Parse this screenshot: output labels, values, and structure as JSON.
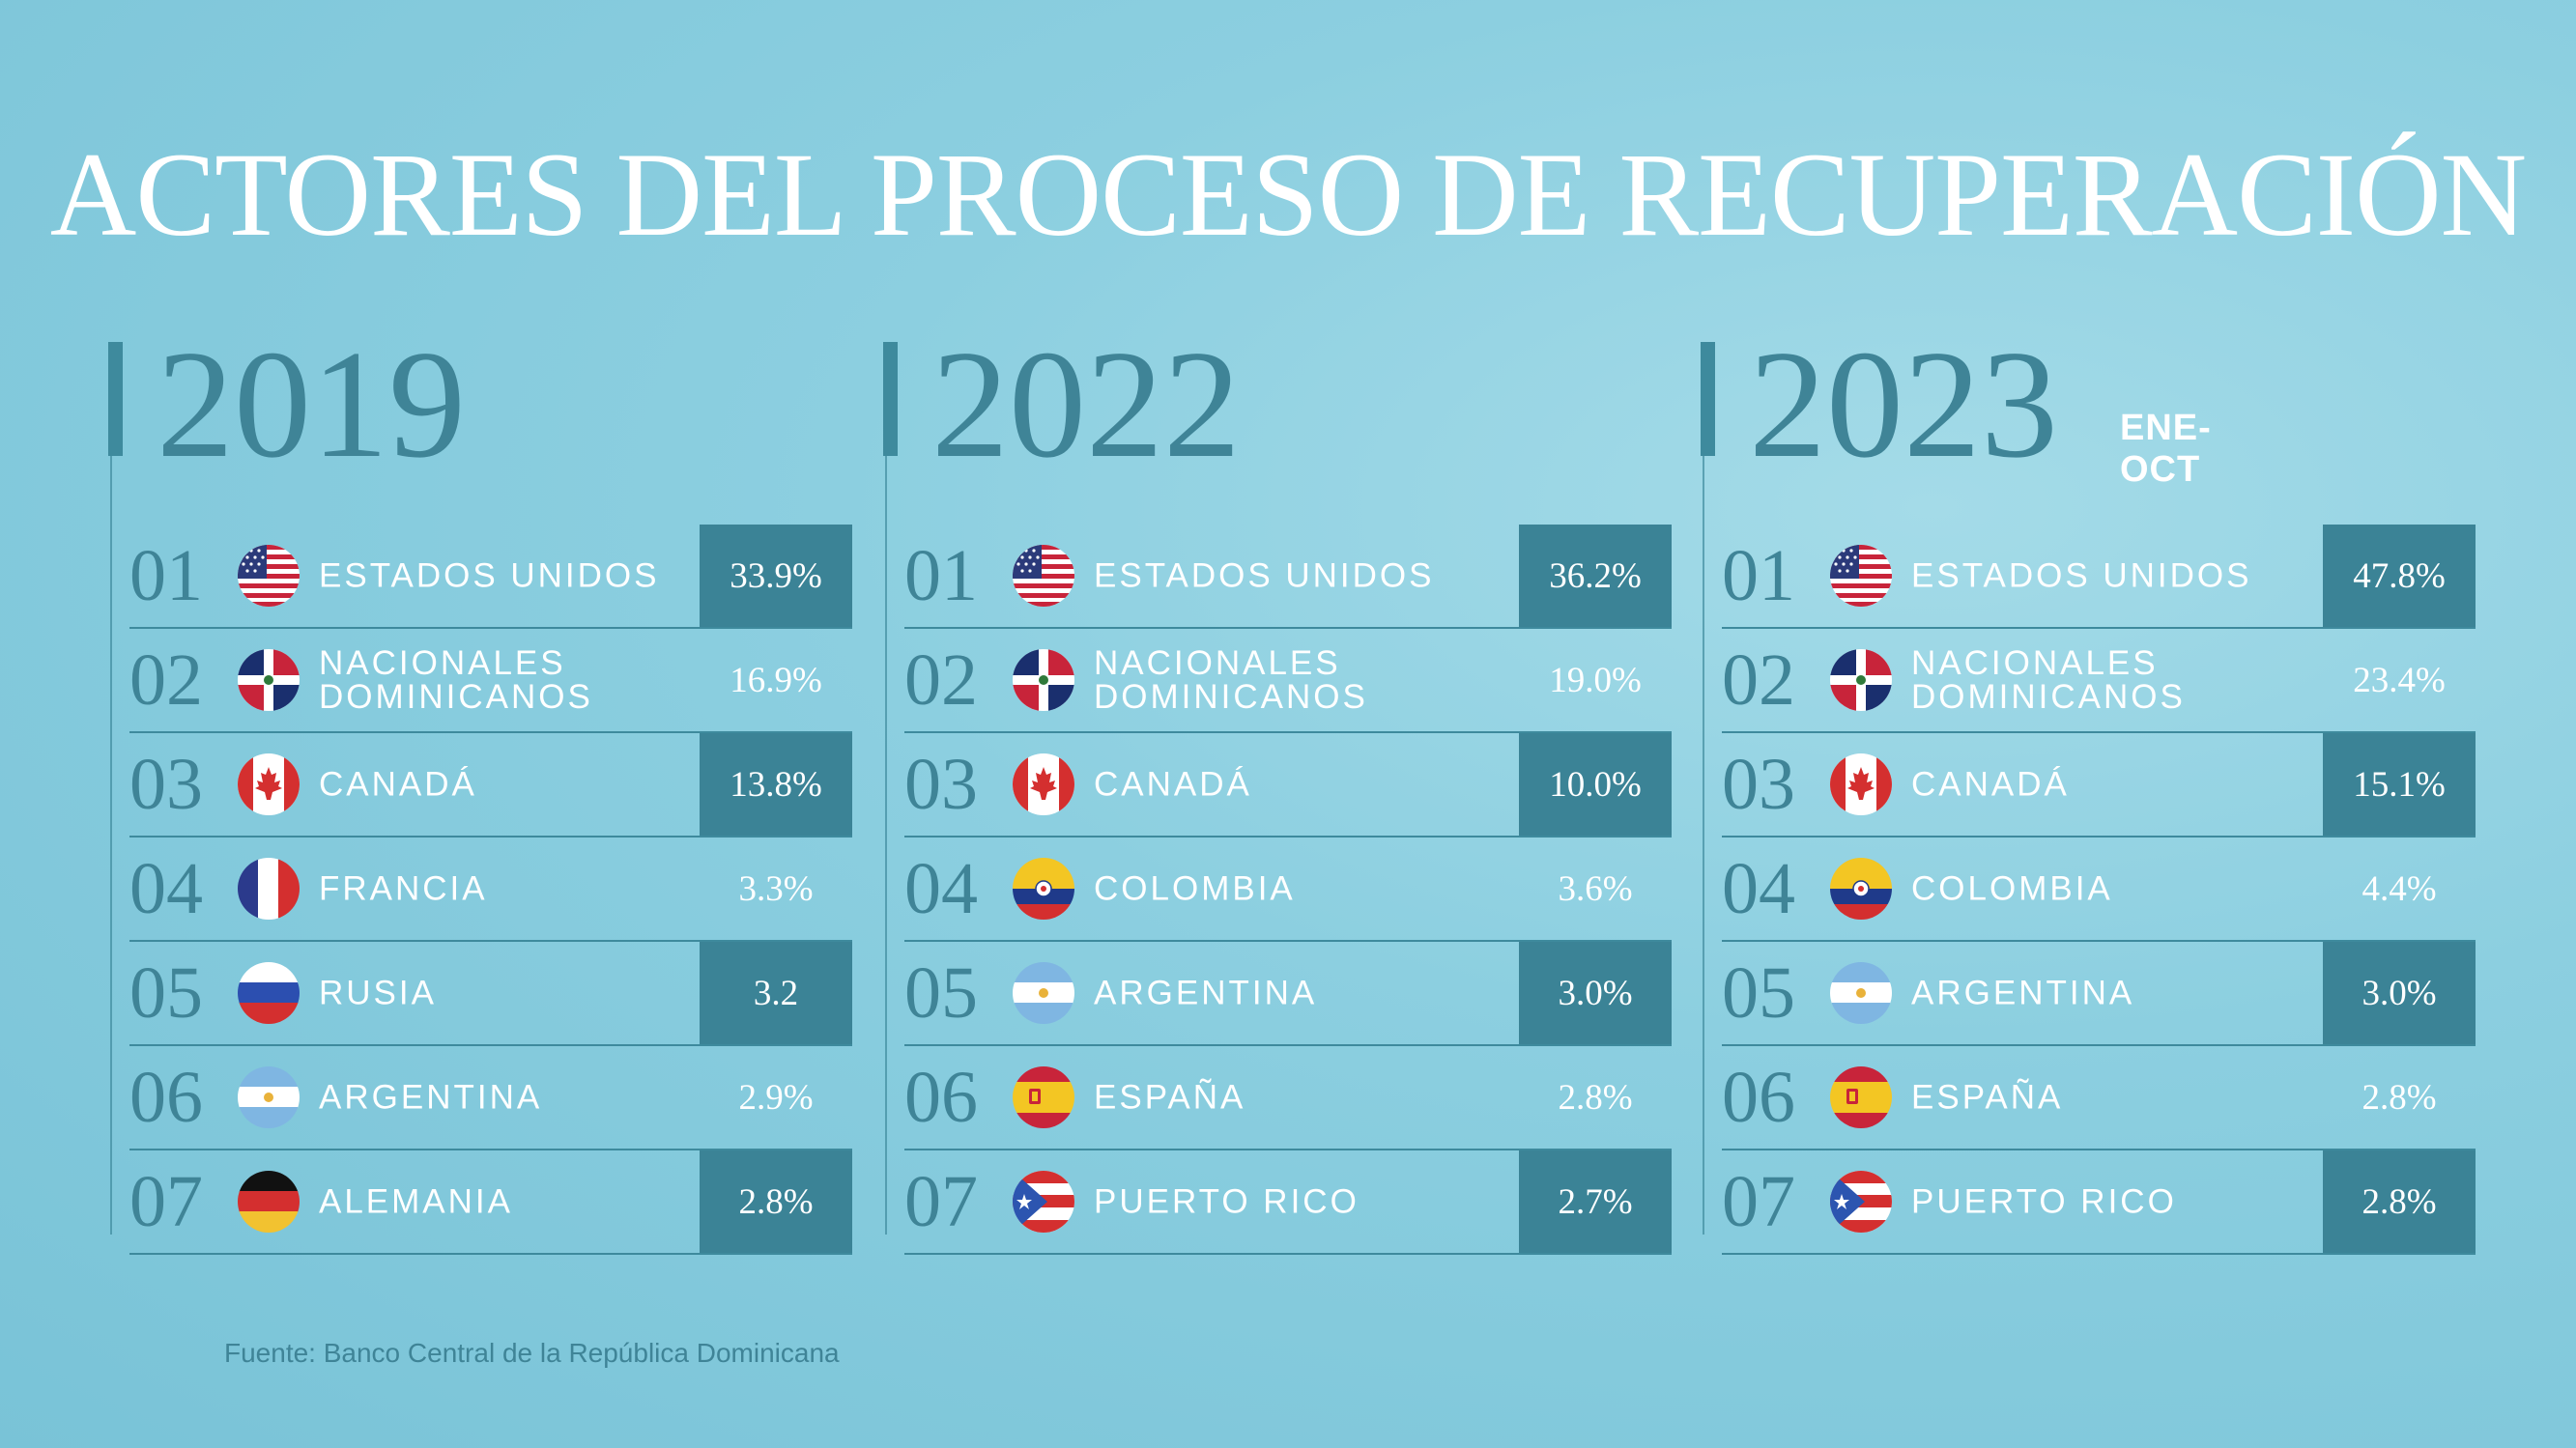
{
  "title": "ACTORES DEL PROCESO DE RECUPERACIÓN",
  "source": "Fuente: Banco Central de la República Dominicana",
  "columns": [
    {
      "year": "2019",
      "subtitle": "",
      "rows": [
        {
          "rank": "01",
          "country": "ESTADOS UNIDOS",
          "flag": "usa-flag-icon",
          "value": "33.9%"
        },
        {
          "rank": "02",
          "country": "NACIONALES DOMINICANOS",
          "flag": "dominican-republic-flag-icon",
          "value": "16.9%"
        },
        {
          "rank": "03",
          "country": "CANADÁ",
          "flag": "canada-flag-icon",
          "value": "13.8%"
        },
        {
          "rank": "04",
          "country": "FRANCIA",
          "flag": "france-flag-icon",
          "value": "3.3%"
        },
        {
          "rank": "05",
          "country": "RUSIA",
          "flag": "russia-flag-icon",
          "value": "3.2"
        },
        {
          "rank": "06",
          "country": "ARGENTINA",
          "flag": "argentina-flag-icon",
          "value": "2.9%"
        },
        {
          "rank": "07",
          "country": "ALEMANIA",
          "flag": "germany-flag-icon",
          "value": "2.8%"
        }
      ]
    },
    {
      "year": "2022",
      "subtitle": "",
      "rows": [
        {
          "rank": "01",
          "country": "ESTADOS UNIDOS",
          "flag": "usa-flag-icon",
          "value": "36.2%"
        },
        {
          "rank": "02",
          "country": "NACIONALES DOMINICANOS",
          "flag": "dominican-republic-flag-icon",
          "value": "19.0%"
        },
        {
          "rank": "03",
          "country": "CANADÁ",
          "flag": "canada-flag-icon",
          "value": "10.0%"
        },
        {
          "rank": "04",
          "country": "COLOMBIA",
          "flag": "colombia-flag-icon",
          "value": "3.6%"
        },
        {
          "rank": "05",
          "country": "ARGENTINA",
          "flag": "argentina-flag-icon",
          "value": "3.0%"
        },
        {
          "rank": "06",
          "country": "ESPAÑA",
          "flag": "spain-flag-icon",
          "value": "2.8%"
        },
        {
          "rank": "07",
          "country": "PUERTO RICO",
          "flag": "puerto-rico-flag-icon",
          "value": "2.7%"
        }
      ]
    },
    {
      "year": "2023",
      "subtitle": "ENE-OCT",
      "rows": [
        {
          "rank": "01",
          "country": "ESTADOS UNIDOS",
          "flag": "usa-flag-icon",
          "value": "47.8%"
        },
        {
          "rank": "02",
          "country": "NACIONALES DOMINICANOS",
          "flag": "dominican-republic-flag-icon",
          "value": "23.4%"
        },
        {
          "rank": "03",
          "country": "CANADÁ",
          "flag": "canada-flag-icon",
          "value": "15.1%"
        },
        {
          "rank": "04",
          "country": "COLOMBIA",
          "flag": "colombia-flag-icon",
          "value": "4.4%"
        },
        {
          "rank": "05",
          "country": "ARGENTINA",
          "flag": "argentina-flag-icon",
          "value": "3.0%"
        },
        {
          "rank": "06",
          "country": "ESPAÑA",
          "flag": "spain-flag-icon",
          "value": "2.8%"
        },
        {
          "rank": "07",
          "country": "PUERTO RICO",
          "flag": "puerto-rico-flag-icon",
          "value": "2.8%"
        }
      ]
    }
  ],
  "chart_data": {
    "type": "table",
    "title": "ACTORES DEL PROCESO DE RECUPERACIÓN",
    "unit": "%",
    "series": [
      {
        "name": "2019",
        "categories": [
          "ESTADOS UNIDOS",
          "NACIONALES DOMINICANOS",
          "CANADÁ",
          "FRANCIA",
          "RUSIA",
          "ARGENTINA",
          "ALEMANIA"
        ],
        "values": [
          33.9,
          16.9,
          13.8,
          3.3,
          3.2,
          2.9,
          2.8
        ]
      },
      {
        "name": "2022",
        "categories": [
          "ESTADOS UNIDOS",
          "NACIONALES DOMINICANOS",
          "CANADÁ",
          "COLOMBIA",
          "ARGENTINA",
          "ESPAÑA",
          "PUERTO RICO"
        ],
        "values": [
          36.2,
          19.0,
          10.0,
          3.6,
          3.0,
          2.8,
          2.7
        ]
      },
      {
        "name": "2023 ENE-OCT",
        "categories": [
          "ESTADOS UNIDOS",
          "NACIONALES DOMINICANOS",
          "CANADÁ",
          "COLOMBIA",
          "ARGENTINA",
          "ESPAÑA",
          "PUERTO RICO"
        ],
        "values": [
          47.8,
          23.4,
          15.1,
          4.4,
          3.0,
          2.8,
          2.8
        ]
      }
    ]
  }
}
